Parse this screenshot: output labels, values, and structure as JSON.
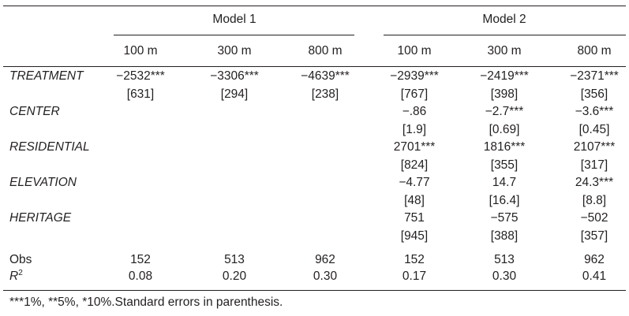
{
  "models": [
    "Model 1",
    "Model 2"
  ],
  "distances": [
    "100 m",
    "300 m",
    "800 m",
    "100 m",
    "300 m",
    "800 m"
  ],
  "rows": [
    {
      "label": "TREATMENT",
      "coef": [
        "−2532***",
        "−3306***",
        "−4639***",
        "−2939***",
        "−2419***",
        "−2371***"
      ],
      "se": [
        "[631]",
        "[294]",
        "[238]",
        "[767]",
        "[398]",
        "[356]"
      ]
    },
    {
      "label": "CENTER",
      "coef": [
        "",
        "",
        "",
        "−.86",
        "−2.7***",
        "−3.6***"
      ],
      "se": [
        "",
        "",
        "",
        "[1.9]",
        "[0.69]",
        "[0.45]"
      ]
    },
    {
      "label": "RESIDENTIAL",
      "coef": [
        "",
        "",
        "",
        "2701***",
        "1816***",
        "2107***"
      ],
      "se": [
        "",
        "",
        "",
        "[824]",
        "[355]",
        "[317]"
      ]
    },
    {
      "label": "ELEVATION",
      "coef": [
        "",
        "",
        "",
        "−4.77",
        "14.7",
        "24.3***"
      ],
      "se": [
        "",
        "",
        "",
        "[48]",
        "[16.4]",
        "[8.8]"
      ]
    },
    {
      "label": "HERITAGE",
      "coef": [
        "",
        "",
        "",
        "751",
        "−575",
        "−502"
      ],
      "se": [
        "",
        "",
        "",
        "[945]",
        "[388]",
        "[357]"
      ]
    }
  ],
  "obs": {
    "label": "Obs",
    "values": [
      "152",
      "513",
      "962",
      "152",
      "513",
      "962"
    ]
  },
  "r2": {
    "label": "R",
    "sup": "2",
    "values": [
      "0.08",
      "0.20",
      "0.30",
      "0.17",
      "0.30",
      "0.41"
    ]
  },
  "footnote": "***1%, **5%, *10%.Standard errors in parenthesis."
}
